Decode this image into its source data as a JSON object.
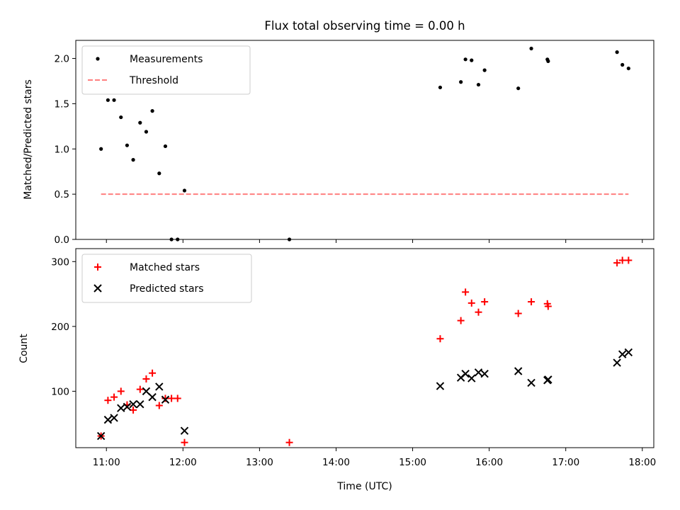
{
  "chart_data": [
    {
      "type": "scatter",
      "title": "Flux total observing time = 0.00 h",
      "xlabel": "",
      "ylabel": "Matched/Predicted stars",
      "xlim": [
        10.6,
        18.15
      ],
      "ylim": [
        0.0,
        2.2
      ],
      "yticks": [
        0.0,
        0.5,
        1.0,
        1.5,
        2.0
      ],
      "ytick_labels": [
        "0.0",
        "0.5",
        "1.0",
        "1.5",
        "2.0"
      ],
      "grid": false,
      "legend_position": "top-left",
      "series": [
        {
          "name": "Measurements",
          "kind": "scatter",
          "marker": "dot",
          "color": "#000000",
          "points": [
            [
              10.93,
              1.0
            ],
            [
              11.02,
              1.54
            ],
            [
              11.1,
              1.54
            ],
            [
              11.19,
              1.35
            ],
            [
              11.27,
              1.04
            ],
            [
              11.35,
              0.88
            ],
            [
              11.44,
              1.29
            ],
            [
              11.52,
              1.19
            ],
            [
              11.6,
              1.42
            ],
            [
              11.69,
              0.73
            ],
            [
              11.77,
              1.03
            ],
            [
              11.85,
              0.0
            ],
            [
              11.93,
              0.0
            ],
            [
              12.02,
              0.54
            ],
            [
              13.39,
              0.0
            ],
            [
              15.36,
              1.68
            ],
            [
              15.63,
              1.74
            ],
            [
              15.69,
              1.99
            ],
            [
              15.77,
              1.98
            ],
            [
              15.86,
              1.71
            ],
            [
              15.94,
              1.87
            ],
            [
              16.38,
              1.67
            ],
            [
              16.55,
              2.11
            ],
            [
              16.76,
              1.99
            ],
            [
              16.77,
              1.97
            ],
            [
              17.67,
              2.07
            ],
            [
              17.74,
              1.93
            ],
            [
              17.82,
              1.89
            ]
          ]
        },
        {
          "name": "Threshold",
          "kind": "line",
          "style": "dashed",
          "color": "#ff7f7f",
          "points": [
            [
              10.93,
              0.5
            ],
            [
              17.82,
              0.5
            ]
          ]
        }
      ]
    },
    {
      "type": "scatter",
      "title": "",
      "xlabel": "Time (UTC)",
      "ylabel": "Count",
      "xlim": [
        10.6,
        18.15
      ],
      "ylim": [
        13,
        320
      ],
      "xticks": [
        11,
        12,
        13,
        14,
        15,
        16,
        17,
        18
      ],
      "xtick_labels": [
        "11:00",
        "12:00",
        "13:00",
        "14:00",
        "15:00",
        "16:00",
        "17:00",
        "18:00"
      ],
      "yticks": [
        100,
        200,
        300
      ],
      "ytick_labels": [
        "100",
        "200",
        "300"
      ],
      "grid": false,
      "legend_position": "top-left",
      "series": [
        {
          "name": "Matched stars",
          "kind": "scatter",
          "marker": "plus",
          "color": "#ff0000",
          "points": [
            [
              10.93,
              31
            ],
            [
              11.02,
              86
            ],
            [
              11.1,
              91
            ],
            [
              11.19,
              100
            ],
            [
              11.27,
              79
            ],
            [
              11.35,
              71
            ],
            [
              11.44,
              103
            ],
            [
              11.52,
              119
            ],
            [
              11.6,
              128
            ],
            [
              11.69,
              78
            ],
            [
              11.77,
              89
            ],
            [
              11.85,
              89
            ],
            [
              11.93,
              89
            ],
            [
              12.02,
              21
            ],
            [
              13.39,
              21
            ],
            [
              15.36,
              181
            ],
            [
              15.63,
              209
            ],
            [
              15.69,
              253
            ],
            [
              15.77,
              236
            ],
            [
              15.86,
              222
            ],
            [
              15.94,
              238
            ],
            [
              16.38,
              220
            ],
            [
              16.55,
              238
            ],
            [
              16.76,
              235
            ],
            [
              16.77,
              231
            ],
            [
              17.67,
              298
            ],
            [
              17.74,
              302
            ],
            [
              17.82,
              302
            ]
          ]
        },
        {
          "name": "Predicted stars",
          "kind": "scatter",
          "marker": "x",
          "color": "#000000",
          "points": [
            [
              10.93,
              31
            ],
            [
              11.02,
              56
            ],
            [
              11.1,
              59
            ],
            [
              11.19,
              74
            ],
            [
              11.27,
              76
            ],
            [
              11.35,
              80
            ],
            [
              11.44,
              80
            ],
            [
              11.52,
              100
            ],
            [
              11.6,
              91
            ],
            [
              11.69,
              107
            ],
            [
              11.77,
              87
            ],
            [
              12.02,
              39
            ],
            [
              15.36,
              108
            ],
            [
              15.63,
              121
            ],
            [
              15.69,
              127
            ],
            [
              15.77,
              120
            ],
            [
              15.86,
              129
            ],
            [
              15.94,
              127
            ],
            [
              16.38,
              131
            ],
            [
              16.55,
              113
            ],
            [
              16.76,
              117
            ],
            [
              16.77,
              118
            ],
            [
              17.67,
              144
            ],
            [
              17.74,
              157
            ],
            [
              17.82,
              160
            ]
          ]
        }
      ]
    }
  ]
}
